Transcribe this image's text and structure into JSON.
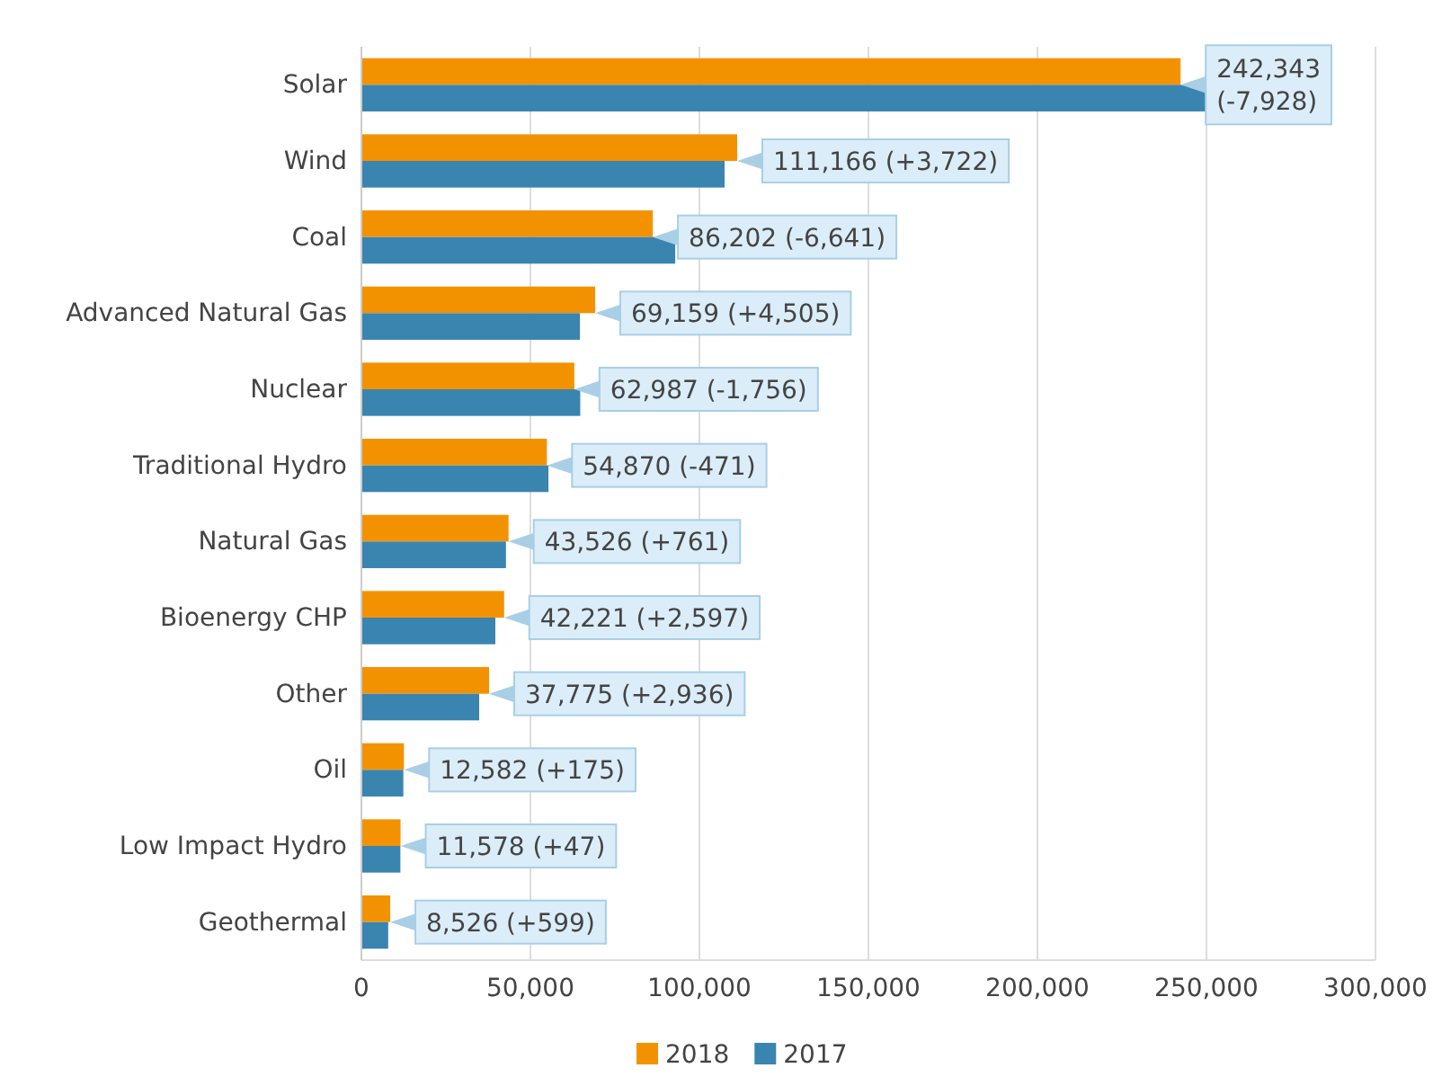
{
  "chart_data": {
    "type": "bar",
    "orientation": "horizontal",
    "categories": [
      "Solar",
      "Wind",
      "Coal",
      "Advanced Natural Gas",
      "Nuclear",
      "Traditional  Hydro",
      "Natural Gas",
      "Bioenergy CHP",
      "Other",
      "Oil",
      "Low Impact Hydro",
      "Geothermal"
    ],
    "series": [
      {
        "name": "2018",
        "color": "#f39200",
        "values": [
          242343,
          111166,
          86202,
          69159,
          62987,
          54870,
          43526,
          42221,
          37775,
          12582,
          11578,
          8526
        ],
        "value_labels": [
          "242,343 (-7,928)",
          "111,166 (+3,722)",
          "86,202 (-6,641)",
          "69,159 (+4,505)",
          "62,987 (-1,756)",
          "54,870 (-471)",
          "43,526 (+761)",
          "42,221 (+2,597)",
          "37,775 (+2,936)",
          "12,582 (+175)",
          "11,578 (+47)",
          "8,526 (+599)"
        ]
      },
      {
        "name": "2017",
        "color": "#3a84b0",
        "values": [
          250271,
          107444,
          92843,
          64654,
          64743,
          55341,
          42765,
          39624,
          34839,
          12407,
          11531,
          7927
        ]
      }
    ],
    "xlim": [
      0,
      300000
    ],
    "xticks": [
      {
        "value": 0,
        "label": "0"
      },
      {
        "value": 50000,
        "label": "50,000"
      },
      {
        "value": 100000,
        "label": "100,000"
      },
      {
        "value": 150000,
        "label": "150,000"
      },
      {
        "value": 200000,
        "label": "200,000"
      },
      {
        "value": 250000,
        "label": "250,000"
      },
      {
        "value": 300000,
        "label": "300,000"
      }
    ],
    "grid": "x",
    "legend": "bottom"
  }
}
